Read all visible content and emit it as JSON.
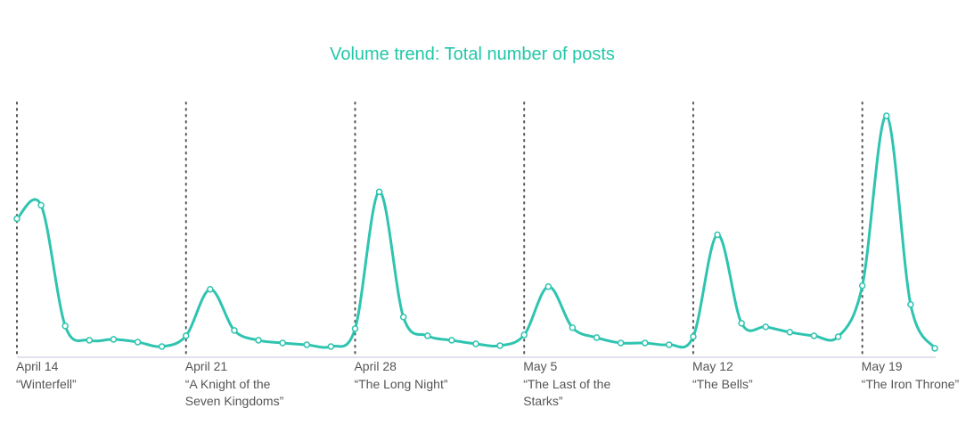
{
  "chart_data": {
    "type": "line",
    "title": "Volume trend: Total number of posts",
    "categories": [
      "April 14",
      null,
      null,
      null,
      null,
      null,
      null,
      "April 21",
      null,
      null,
      null,
      null,
      null,
      null,
      "April 28",
      null,
      null,
      null,
      null,
      null,
      null,
      "May 5",
      null,
      null,
      null,
      null,
      null,
      null,
      "May 12",
      null,
      null,
      null,
      null,
      null,
      null,
      "May 19",
      null,
      null,
      null
    ],
    "episodes": [
      "“Winterfell”",
      "“A Knight of the Seven Kingdoms”",
      "“The Long Night”",
      "“The Last of the Starks”",
      "“The Bells”",
      "“The Iron Throne”"
    ],
    "series": [
      {
        "name": "Total number of posts",
        "color": "#2ec4b0",
        "values": [
          154,
          169,
          34,
          18,
          19,
          16,
          11,
          23,
          75,
          29,
          18,
          15,
          13,
          11,
          31,
          184,
          44,
          23,
          18,
          14,
          12,
          24,
          78,
          32,
          21,
          15,
          15,
          13,
          22,
          136,
          37,
          33,
          27,
          23,
          22,
          79,
          269,
          58,
          9
        ]
      }
    ]
  }
}
